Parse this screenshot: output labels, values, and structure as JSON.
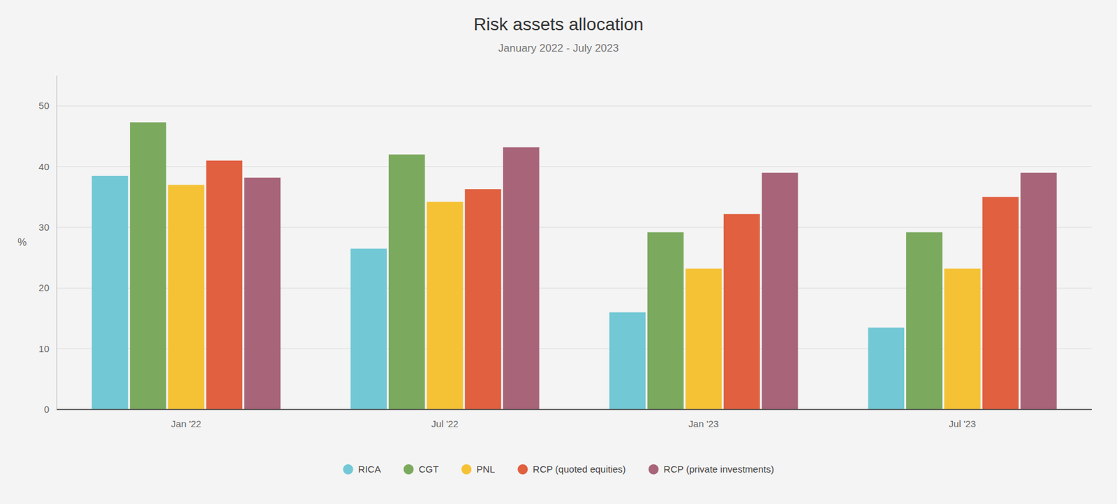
{
  "chart_data": {
    "type": "bar",
    "title": "Risk assets allocation",
    "subtitle": "January 2022 - July 2023",
    "ylabel": "%",
    "categories": [
      "Jan '22",
      "Jul '22",
      "Jan '23",
      "Jul '23"
    ],
    "series": [
      {
        "name": "RICA",
        "color": "#72c8d5",
        "values": [
          38.5,
          26.5,
          16.0,
          13.5
        ]
      },
      {
        "name": "CGT",
        "color": "#7baa5e",
        "values": [
          47.3,
          42.0,
          29.2,
          29.2
        ]
      },
      {
        "name": "PNL",
        "color": "#f5c235",
        "values": [
          37.0,
          34.2,
          23.2,
          23.2
        ]
      },
      {
        "name": "RCP (quoted equities)",
        "color": "#e06040",
        "values": [
          41.0,
          36.3,
          32.2,
          35.0
        ]
      },
      {
        "name": "RCP (private investments)",
        "color": "#a86478",
        "values": [
          38.2,
          43.2,
          39.0,
          39.0
        ]
      }
    ],
    "ylim": [
      0,
      55
    ],
    "yticks": [
      0,
      10,
      20,
      30,
      40,
      50
    ],
    "grid": true,
    "legend": "bottom"
  }
}
